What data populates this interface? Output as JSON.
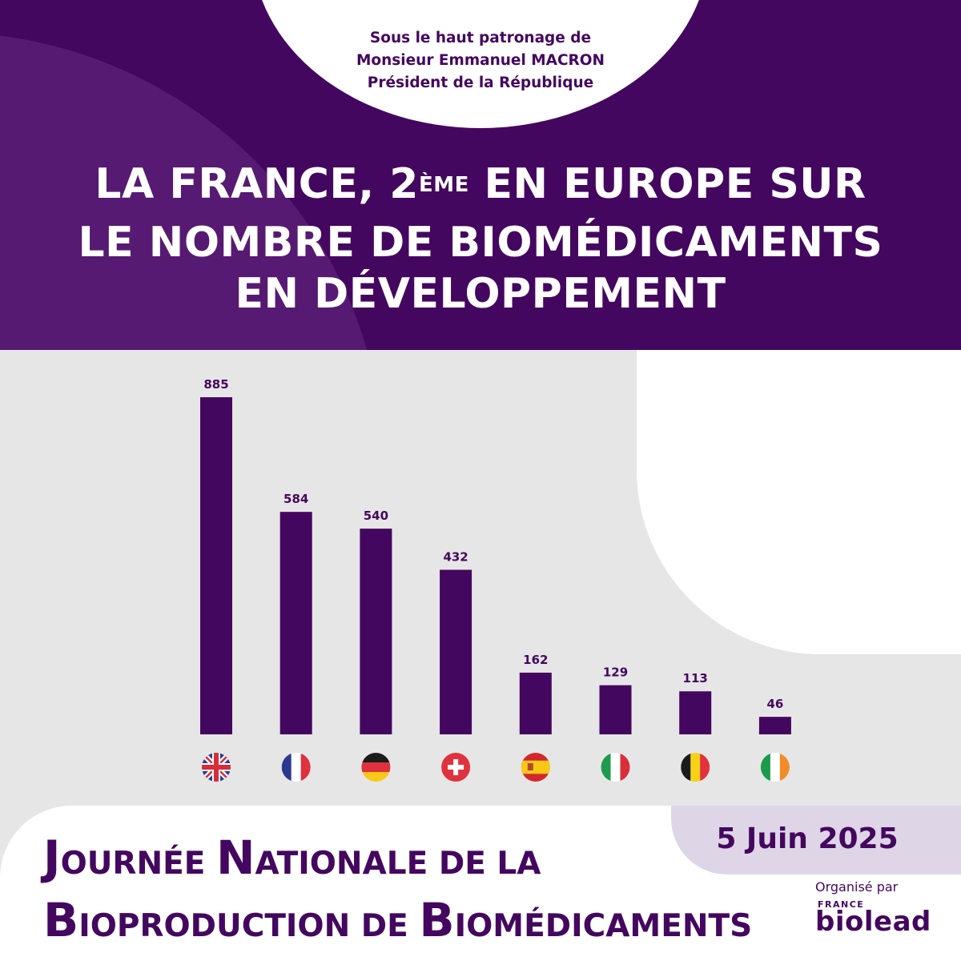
{
  "patronage": {
    "line1": "Sous le haut patronage de",
    "line2": "Monsieur Emmanuel MACRON",
    "line3": "Président de la République"
  },
  "headline": {
    "line1_a": "LA FRANCE, 2",
    "line1_sup": "ÈME",
    "line1_b": " EN EUROPE SUR",
    "line2": "LE NOMBRE DE BIOMÉDICAMENTS",
    "line3": "EN DÉVELOPPEMENT"
  },
  "chart_data": {
    "type": "bar",
    "categories": [
      "Royaume-Uni",
      "France",
      "Allemagne",
      "Suisse",
      "Espagne",
      "Italie",
      "Belgique",
      "Irlande"
    ],
    "values": [
      885,
      584,
      540,
      432,
      162,
      129,
      113,
      46
    ],
    "flags": [
      "uk",
      "fr",
      "de",
      "ch",
      "es",
      "it",
      "be",
      "ie"
    ],
    "ylim": [
      0,
      885
    ],
    "bar_color": "#44075f"
  },
  "event": {
    "line1_cap1": "J",
    "line1_rest1": "OURNÉE ",
    "line1_cap2": "N",
    "line1_rest2": "ATIONALE DE LA",
    "line2_cap1": "B",
    "line2_rest1": "IOPRODUCTION DE ",
    "line2_cap2": "B",
    "line2_rest2": "IOMÉDICAMENTS"
  },
  "date": "5 Juin 2025",
  "organizer": {
    "label": "Organisé par",
    "france": "FRANCE",
    "brand": "biolead"
  },
  "colors": {
    "primary": "#44075f",
    "primary_light": "#571a72",
    "background": "#e6e6e6",
    "date_box": "#ded5e6"
  }
}
